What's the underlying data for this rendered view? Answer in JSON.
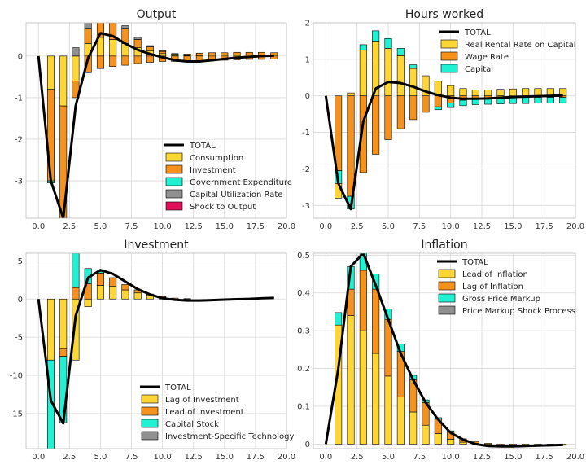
{
  "colors": {
    "consumption": "#FFD633",
    "investment": "#F5921E",
    "government": "#1EF2D2",
    "capital_util": "#909090",
    "shock": "#E0105A",
    "total": "#000000"
  },
  "chart_data": [
    {
      "type": "bar",
      "title": "Output",
      "xlim": [
        -1,
        20
      ],
      "ylim": [
        -3.9,
        0.8
      ],
      "xticks": [
        0.0,
        2.5,
        5.0,
        7.5,
        10.0,
        12.5,
        15.0,
        17.5,
        20.0
      ],
      "yticks": [
        -3,
        -2,
        -1,
        0
      ],
      "legend_position": "lower-right",
      "x": [
        0,
        1,
        2,
        3,
        4,
        5,
        6,
        7,
        8,
        9,
        10,
        11,
        12,
        13,
        14,
        15,
        16,
        17,
        18,
        19
      ],
      "total": [
        0,
        -3.0,
        -3.9,
        -1.2,
        -0.05,
        0.55,
        0.48,
        0.3,
        0.15,
        0.05,
        -0.03,
        -0.1,
        -0.13,
        -0.13,
        -0.1,
        -0.07,
        -0.04,
        -0.02,
        0.0,
        0.01
      ],
      "series": [
        {
          "name": "TOTAL",
          "color_key": "total",
          "kind": "line"
        },
        {
          "name": "Consumption",
          "color_key": "consumption",
          "values": [
            0,
            -0.8,
            -1.2,
            -0.6,
            0.3,
            0.45,
            0.4,
            0.3,
            0.2,
            0.12,
            0.06,
            0.02,
            0.01,
            0.02,
            0.03,
            0.03,
            0.03,
            0.03,
            0.03,
            0.03
          ]
        },
        {
          "name": "Investment",
          "color_key": "investment",
          "values": [
            0,
            -2.2,
            -2.7,
            -0.4,
            0.35,
            0.6,
            0.5,
            0.35,
            0.2,
            0.1,
            0.05,
            0.03,
            0.04,
            0.05,
            0.05,
            0.05,
            0.06,
            0.06,
            0.06,
            0.05
          ]
        },
        {
          "name": "Government Expenditure",
          "color_key": "government",
          "values": [
            0,
            -0.05,
            -0.02,
            0,
            0,
            0,
            0,
            0,
            0,
            0,
            0,
            0,
            0,
            0,
            0,
            0,
            0,
            0,
            0,
            0
          ]
        },
        {
          "name": "Capital Utilization Rate",
          "color_key": "capital_util",
          "values": [
            0,
            0,
            0,
            0.2,
            0.2,
            0.18,
            0.12,
            0.08,
            0.05,
            0.03,
            0.02,
            0.01,
            0,
            0,
            0,
            0,
            0,
            0,
            0,
            0
          ]
        },
        {
          "name": "Shock to Output",
          "color_key": "shock",
          "values": [
            0,
            0,
            0,
            0,
            0,
            0,
            0,
            0,
            0,
            0,
            0,
            0,
            0,
            0,
            0,
            0,
            0,
            0,
            0,
            0
          ]
        }
      ],
      "negatives": [
        [
          0,
          0,
          0,
          0,
          0,
          0,
          0,
          0,
          0,
          0,
          0,
          0,
          0,
          0,
          0,
          0,
          0,
          0,
          0,
          0
        ],
        [
          0,
          0,
          0,
          0,
          -0.4,
          -0.3,
          -0.25,
          -0.22,
          -0.18,
          -0.15,
          -0.13,
          -0.13,
          -0.13,
          -0.12,
          -0.11,
          -0.1,
          -0.09,
          -0.08,
          -0.08,
          -0.07
        ]
      ]
    },
    {
      "type": "bar",
      "title": "Hours worked",
      "xlim": [
        -1,
        20
      ],
      "ylim": [
        -3.35,
        2.0
      ],
      "xticks": [
        0.0,
        2.5,
        5.0,
        7.5,
        10.0,
        12.5,
        15.0,
        17.5,
        20.0
      ],
      "yticks": [
        -3,
        -2,
        -1,
        0,
        1,
        2
      ],
      "legend_position": "upper-right",
      "x": [
        0,
        1,
        2,
        3,
        4,
        5,
        6,
        7,
        8,
        9,
        10,
        11,
        12,
        13,
        14,
        15,
        16,
        17,
        18,
        19
      ],
      "total": [
        0,
        -2.4,
        -3.1,
        -0.7,
        0.2,
        0.38,
        0.35,
        0.25,
        0.12,
        0.02,
        -0.05,
        -0.08,
        -0.08,
        -0.07,
        -0.05,
        -0.03,
        -0.02,
        -0.01,
        0.0,
        0.01
      ],
      "series": [
        {
          "name": "TOTAL",
          "color_key": "total",
          "kind": "line"
        },
        {
          "name": "Real Rental Rate on Capital",
          "color_key": "consumption",
          "values": [
            0,
            0,
            0.08,
            1.25,
            1.5,
            1.3,
            1.1,
            0.75,
            0.55,
            0.4,
            0.28,
            0.2,
            0.16,
            0.16,
            0.18,
            0.19,
            0.2,
            0.2,
            0.2,
            0.2
          ]
        },
        {
          "name": "Wage Rate",
          "color_key": "investment",
          "values": [
            0,
            -2.05,
            -2.75,
            -2.1,
            -1.6,
            -1.2,
            -0.9,
            -0.65,
            -0.45,
            -0.3,
            -0.2,
            -0.12,
            -0.08,
            -0.06,
            -0.05,
            -0.04,
            -0.04,
            -0.04,
            -0.04,
            -0.04
          ]
        },
        {
          "name": "Capital",
          "color_key": "government",
          "values": [
            0,
            -0.35,
            -0.35,
            0.15,
            0.28,
            0.27,
            0.2,
            0.1,
            0,
            -0.08,
            -0.12,
            -0.15,
            -0.16,
            -0.17,
            -0.17,
            -0.17,
            -0.17,
            -0.16,
            -0.16,
            -0.15
          ]
        }
      ],
      "negatives_detail": {
        "rr_neg": [
          0,
          -0.4,
          0,
          0,
          0,
          0,
          0,
          0,
          0,
          0,
          0,
          0,
          0,
          0,
          0,
          0,
          0,
          0,
          0,
          0
        ]
      }
    },
    {
      "type": "bar",
      "title": "Investment",
      "xlim": [
        -1,
        20
      ],
      "ylim": [
        -19.6,
        6.0
      ],
      "xticks": [
        0.0,
        2.5,
        5.0,
        7.5,
        10.0,
        12.5,
        15.0,
        17.5,
        20.0
      ],
      "yticks": [
        -15,
        -10,
        -5,
        0,
        5
      ],
      "legend_position": "lower-right",
      "x": [
        0,
        1,
        2,
        3,
        4,
        5,
        6,
        7,
        8,
        9,
        10,
        11,
        12,
        13,
        14,
        15,
        16,
        17,
        18,
        19
      ],
      "total": [
        0,
        -13.3,
        -16.3,
        -2.2,
        2.8,
        3.8,
        3.3,
        2.3,
        1.3,
        0.6,
        0.1,
        -0.1,
        -0.2,
        -0.2,
        -0.15,
        -0.08,
        -0.03,
        0.02,
        0.1,
        0.15
      ],
      "series": [
        {
          "name": "TOTAL",
          "color_key": "total",
          "kind": "line"
        },
        {
          "name": "Lag of Investment",
          "color_key": "consumption",
          "values": [
            0,
            -8,
            -6.5,
            -8,
            -1,
            1.8,
            1.7,
            1.2,
            0.8,
            0.45,
            0.25,
            0.12,
            0.05,
            0,
            0,
            0,
            0,
            0,
            0,
            0
          ]
        },
        {
          "name": "Lead of Investment",
          "color_key": "investment",
          "values": [
            0,
            0,
            -1,
            1.5,
            2,
            1.6,
            1.1,
            0.7,
            0.4,
            0.2,
            0.1,
            0,
            0,
            0,
            0,
            0,
            0,
            0,
            0,
            0
          ]
        },
        {
          "name": "Capital Stock",
          "color_key": "government",
          "values": [
            0,
            -12,
            -8.7,
            4.5,
            2,
            0.2,
            0,
            0,
            0,
            0,
            0,
            0,
            0,
            0,
            0,
            0,
            0,
            0,
            0,
            0
          ]
        },
        {
          "name": "Investment-Specific Technology",
          "color_key": "capital_util",
          "values": [
            0,
            0,
            0,
            0,
            0,
            0,
            0,
            0,
            0,
            0,
            0,
            0,
            0,
            0,
            0,
            0,
            0,
            0,
            0,
            0
          ]
        }
      ]
    },
    {
      "type": "bar",
      "title": "Inflation",
      "xlim": [
        -1,
        20
      ],
      "ylim": [
        -0.012,
        0.505
      ],
      "xticks": [
        0.0,
        2.5,
        5.0,
        7.5,
        10.0,
        12.5,
        15.0,
        17.5,
        20.0
      ],
      "yticks": [
        0.0,
        0.1,
        0.2,
        0.3,
        0.4,
        0.5
      ],
      "legend_position": "upper-right",
      "x": [
        0,
        1,
        2,
        3,
        4,
        5,
        6,
        7,
        8,
        9,
        10,
        11,
        12,
        13,
        14,
        15,
        16,
        17,
        18,
        19
      ],
      "total": [
        0,
        0.2,
        0.47,
        0.505,
        0.42,
        0.33,
        0.24,
        0.17,
        0.11,
        0.065,
        0.03,
        0.012,
        0.0,
        -0.005,
        -0.006,
        -0.006,
        -0.005,
        -0.004,
        -0.003,
        -0.002
      ],
      "series": [
        {
          "name": "TOTAL",
          "color_key": "total",
          "kind": "line"
        },
        {
          "name": "Lead of Inflation",
          "color_key": "consumption",
          "values": [
            0,
            0.315,
            0.34,
            0.3,
            0.24,
            0.18,
            0.125,
            0.085,
            0.05,
            0.028,
            0.013,
            0.005,
            0.002,
            0,
            0,
            0,
            0,
            0,
            0,
            0
          ]
        },
        {
          "name": "Lag of Inflation",
          "color_key": "investment",
          "values": [
            0,
            0,
            0.07,
            0.16,
            0.17,
            0.15,
            0.12,
            0.085,
            0.06,
            0.038,
            0.02,
            0.009,
            0.004,
            0.002,
            0,
            0,
            0,
            0,
            0,
            0
          ]
        },
        {
          "name": "Gross Price Markup",
          "color_key": "government",
          "values": [
            0,
            0.033,
            0.06,
            0.045,
            0.04,
            0.027,
            0.02,
            0.012,
            0.007,
            0.004,
            0.002,
            0,
            0,
            0,
            0,
            0,
            0,
            0,
            0,
            0
          ]
        },
        {
          "name": "Price Markup Shock Process",
          "color_key": "capital_util",
          "values": [
            0,
            0,
            0,
            0,
            0,
            0,
            0,
            0,
            0,
            0,
            0,
            0,
            0,
            0,
            0,
            0,
            0,
            0,
            0,
            0
          ]
        }
      ],
      "negatives": [
        [
          0,
          0,
          0,
          0,
          0,
          0,
          0,
          0,
          0,
          0,
          0,
          0,
          0,
          -0.004,
          -0.005,
          -0.006,
          -0.005,
          -0.005,
          -0.004,
          -0.003
        ]
      ]
    }
  ]
}
